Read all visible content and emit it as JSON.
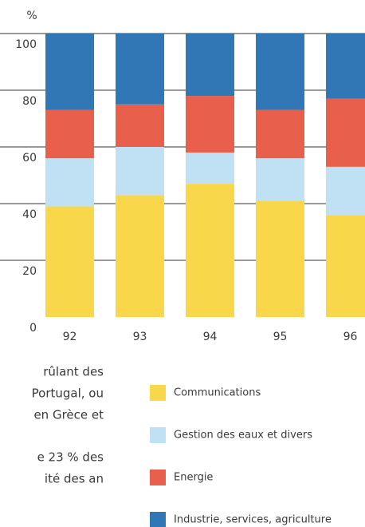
{
  "chart_data": {
    "type": "stacked_bar",
    "y_label": "%",
    "categories": [
      "92",
      "93",
      "94",
      "95",
      "96"
    ],
    "series": [
      {
        "name": "Communications",
        "color": "#f8d84a",
        "values": [
          39,
          43,
          47,
          41,
          36
        ]
      },
      {
        "name": "Gestion des eaux et divers",
        "color": "#bfe1f3",
        "values": [
          17,
          17,
          11,
          15,
          17
        ]
      },
      {
        "name": "Energie",
        "color": "#e8604c",
        "values": [
          17,
          15,
          20,
          17,
          24
        ]
      },
      {
        "name": "Industrie, services, agriculture",
        "color": "#2f78b5",
        "values": [
          27,
          25,
          22,
          27,
          23
        ]
      }
    ],
    "ylim": [
      0,
      100
    ],
    "yticks": [
      0,
      20,
      40,
      60,
      80,
      100
    ],
    "grid": true
  },
  "body_text": [
    "rûlant des",
    "Portugal, ou",
    "en Grèce et",
    "e 23 % des",
    "ité des an"
  ]
}
